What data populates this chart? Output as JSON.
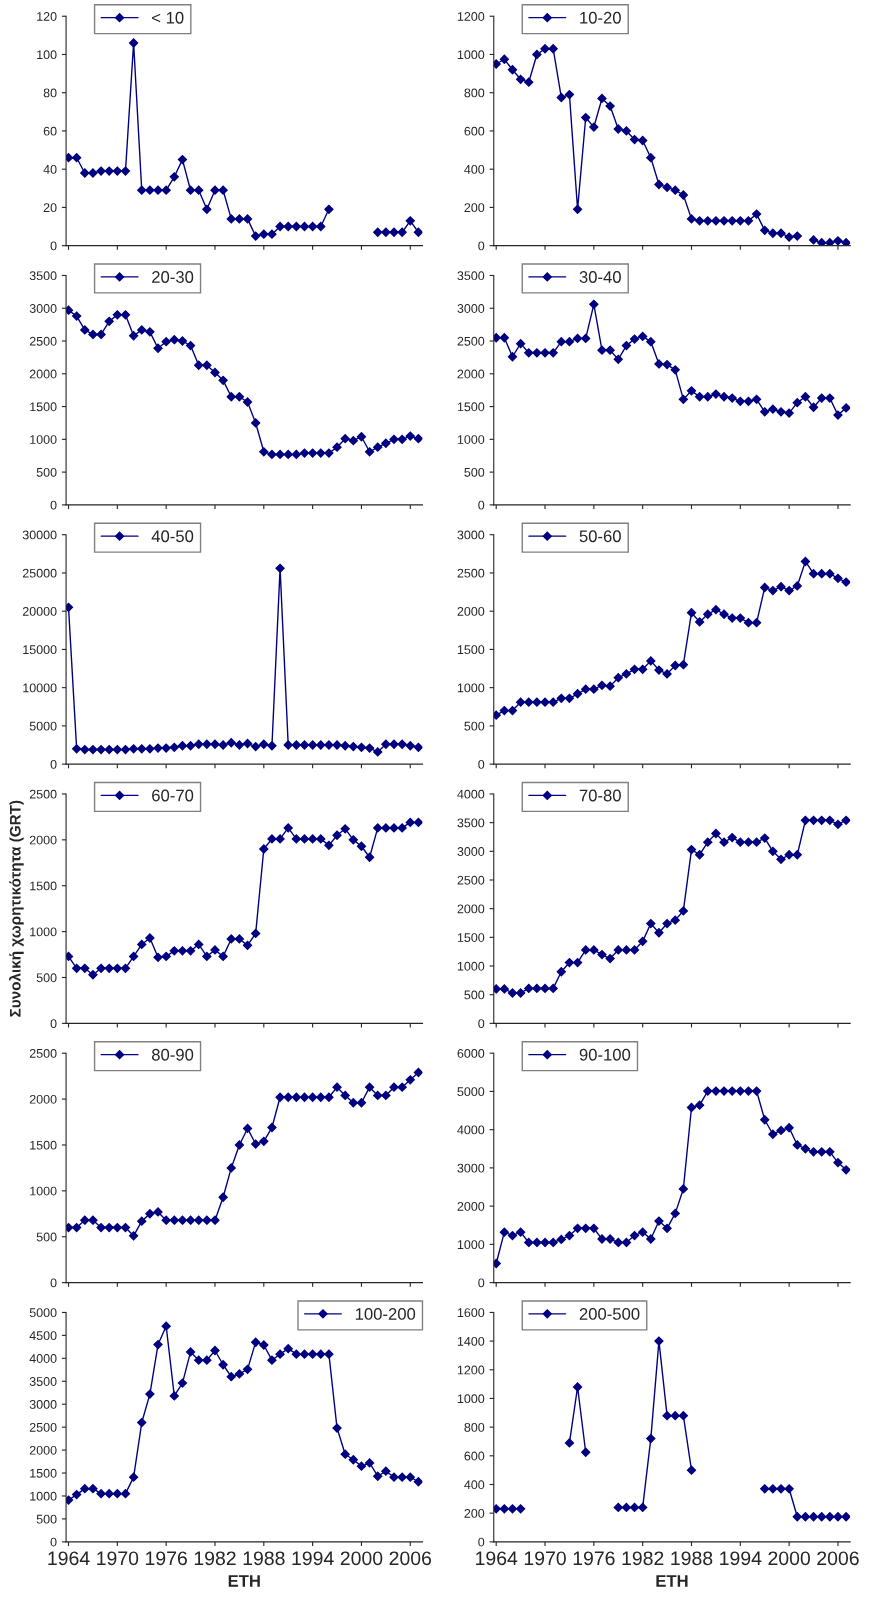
{
  "chart_data": [
    {
      "type": "line",
      "x": [
        1964,
        1965,
        1966,
        1967,
        1968,
        1969,
        1970,
        1971,
        1972,
        1973,
        1974,
        1975,
        1976,
        1977,
        1978,
        1979,
        1980,
        1981,
        1982,
        1983,
        1984,
        1985,
        1986,
        1987,
        1988,
        1989,
        1990,
        1991,
        1992,
        1993,
        1994,
        1995,
        1996,
        1997,
        1998,
        1999,
        2000,
        2001,
        2002,
        2003,
        2004,
        2005,
        2006,
        2007
      ],
      "xlim": [
        1963.7,
        2007.5
      ],
      "xticks": [
        1964,
        1970,
        1976,
        1982,
        1988,
        1994,
        2000,
        2006
      ],
      "ylim": [
        0,
        120
      ],
      "yticks": [
        0,
        20,
        40,
        60,
        80,
        100,
        120
      ],
      "tick_labels": "y",
      "legend": "top left",
      "marker": "diamond",
      "line_style": "solid",
      "grid": false,
      "series": [
        {
          "name": "< 10",
          "color": "#000080",
          "values": [
            46,
            46,
            38,
            38,
            39,
            39,
            39,
            39,
            106,
            29,
            29,
            29,
            29,
            36,
            45,
            29,
            29,
            19,
            29,
            29,
            14,
            14,
            14,
            5,
            6,
            6,
            10,
            10,
            10,
            10,
            10,
            10,
            19,
            null,
            null,
            null,
            null,
            null,
            7,
            7,
            7,
            7,
            13,
            7
          ]
        }
      ]
    },
    {
      "type": "line",
      "x": [
        1964,
        1965,
        1966,
        1967,
        1968,
        1969,
        1970,
        1971,
        1972,
        1973,
        1974,
        1975,
        1976,
        1977,
        1978,
        1979,
        1980,
        1981,
        1982,
        1983,
        1984,
        1985,
        1986,
        1987,
        1988,
        1989,
        1990,
        1991,
        1992,
        1993,
        1994,
        1995,
        1996,
        1997,
        1998,
        1999,
        2000,
        2001,
        2002,
        2003,
        2004,
        2005,
        2006,
        2007
      ],
      "xlim": [
        1963.7,
        2007.5
      ],
      "xticks": [
        1964,
        1970,
        1976,
        1982,
        1988,
        1994,
        2000,
        2006
      ],
      "ylim": [
        0,
        1200
      ],
      "yticks": [
        0,
        200,
        400,
        600,
        800,
        1000,
        1200
      ],
      "tick_labels": "y",
      "legend": "top left",
      "marker": "diamond",
      "line_style": "solid",
      "grid": false,
      "series": [
        {
          "name": "10-20",
          "color": "#000080",
          "values": [
            950,
            975,
            920,
            870,
            855,
            1000,
            1030,
            1030,
            775,
            790,
            190,
            670,
            620,
            770,
            730,
            610,
            600,
            555,
            550,
            460,
            320,
            305,
            290,
            265,
            140,
            130,
            130,
            130,
            130,
            130,
            130,
            130,
            165,
            80,
            65,
            65,
            45,
            50,
            null,
            30,
            15,
            15,
            25,
            15
          ]
        }
      ]
    },
    {
      "type": "line",
      "x": [
        1964,
        1965,
        1966,
        1967,
        1968,
        1969,
        1970,
        1971,
        1972,
        1973,
        1974,
        1975,
        1976,
        1977,
        1978,
        1979,
        1980,
        1981,
        1982,
        1983,
        1984,
        1985,
        1986,
        1987,
        1988,
        1989,
        1990,
        1991,
        1992,
        1993,
        1994,
        1995,
        1996,
        1997,
        1998,
        1999,
        2000,
        2001,
        2002,
        2003,
        2004,
        2005,
        2006,
        2007
      ],
      "xlim": [
        1963.7,
        2007.5
      ],
      "xticks": [
        1964,
        1970,
        1976,
        1982,
        1988,
        1994,
        2000,
        2006
      ],
      "ylim": [
        0,
        3500
      ],
      "yticks": [
        0,
        500,
        1000,
        1500,
        2000,
        2500,
        3000,
        3500
      ],
      "tick_labels": "y",
      "legend": "top left",
      "marker": "diamond",
      "line_style": "solid",
      "grid": false,
      "series": [
        {
          "name": "20-30",
          "color": "#000080",
          "values": [
            2970,
            2880,
            2670,
            2600,
            2600,
            2800,
            2900,
            2900,
            2580,
            2670,
            2640,
            2390,
            2490,
            2520,
            2500,
            2430,
            2130,
            2130,
            2020,
            1900,
            1650,
            1650,
            1570,
            1250,
            810,
            770,
            770,
            770,
            770,
            790,
            790,
            790,
            790,
            880,
            1010,
            980,
            1040,
            810,
            880,
            940,
            1000,
            1000,
            1050,
            1010
          ]
        }
      ]
    },
    {
      "type": "line",
      "x": [
        1964,
        1965,
        1966,
        1967,
        1968,
        1969,
        1970,
        1971,
        1972,
        1973,
        1974,
        1975,
        1976,
        1977,
        1978,
        1979,
        1980,
        1981,
        1982,
        1983,
        1984,
        1985,
        1986,
        1987,
        1988,
        1989,
        1990,
        1991,
        1992,
        1993,
        1994,
        1995,
        1996,
        1997,
        1998,
        1999,
        2000,
        2001,
        2002,
        2003,
        2004,
        2005,
        2006,
        2007
      ],
      "xlim": [
        1963.7,
        2007.5
      ],
      "xticks": [
        1964,
        1970,
        1976,
        1982,
        1988,
        1994,
        2000,
        2006
      ],
      "ylim": [
        0,
        3500
      ],
      "yticks": [
        0,
        500,
        1000,
        1500,
        2000,
        2500,
        3000,
        3500
      ],
      "tick_labels": "y",
      "legend": "top left",
      "marker": "diamond",
      "line_style": "solid",
      "grid": false,
      "series": [
        {
          "name": "30-40",
          "color": "#000080",
          "values": [
            2550,
            2550,
            2260,
            2460,
            2320,
            2320,
            2320,
            2320,
            2490,
            2490,
            2540,
            2540,
            3060,
            2360,
            2360,
            2220,
            2430,
            2530,
            2570,
            2490,
            2150,
            2140,
            2060,
            1610,
            1740,
            1650,
            1650,
            1690,
            1650,
            1630,
            1580,
            1580,
            1610,
            1420,
            1460,
            1420,
            1400,
            1560,
            1650,
            1490,
            1630,
            1630,
            1370,
            1480
          ]
        }
      ]
    },
    {
      "type": "line",
      "x": [
        1964,
        1965,
        1966,
        1967,
        1968,
        1969,
        1970,
        1971,
        1972,
        1973,
        1974,
        1975,
        1976,
        1977,
        1978,
        1979,
        1980,
        1981,
        1982,
        1983,
        1984,
        1985,
        1986,
        1987,
        1988,
        1989,
        1990,
        1991,
        1992,
        1993,
        1994,
        1995,
        1996,
        1997,
        1998,
        1999,
        2000,
        2001,
        2002,
        2003,
        2004,
        2005,
        2006,
        2007
      ],
      "xlim": [
        1963.7,
        2007.5
      ],
      "xticks": [
        1964,
        1970,
        1976,
        1982,
        1988,
        1994,
        2000,
        2006
      ],
      "ylim": [
        0,
        30000
      ],
      "yticks": [
        0,
        5000,
        10000,
        15000,
        20000,
        25000,
        30000
      ],
      "tick_labels": "y",
      "legend": "top left",
      "marker": "diamond",
      "line_style": "solid",
      "grid": false,
      "series": [
        {
          "name": "40-50",
          "color": "#000080",
          "values": [
            20500,
            2000,
            1900,
            1900,
            1900,
            1900,
            1900,
            1900,
            2000,
            2000,
            2000,
            2100,
            2100,
            2200,
            2400,
            2400,
            2600,
            2600,
            2600,
            2500,
            2800,
            2500,
            2700,
            2300,
            2600,
            2400,
            25600,
            2500,
            2500,
            2500,
            2500,
            2500,
            2500,
            2500,
            2400,
            2300,
            2200,
            2100,
            1600,
            2600,
            2600,
            2600,
            2400,
            2200
          ]
        }
      ]
    },
    {
      "type": "line",
      "x": [
        1964,
        1965,
        1966,
        1967,
        1968,
        1969,
        1970,
        1971,
        1972,
        1973,
        1974,
        1975,
        1976,
        1977,
        1978,
        1979,
        1980,
        1981,
        1982,
        1983,
        1984,
        1985,
        1986,
        1987,
        1988,
        1989,
        1990,
        1991,
        1992,
        1993,
        1994,
        1995,
        1996,
        1997,
        1998,
        1999,
        2000,
        2001,
        2002,
        2003,
        2004,
        2005,
        2006,
        2007
      ],
      "xlim": [
        1963.7,
        2007.5
      ],
      "xticks": [
        1964,
        1970,
        1976,
        1982,
        1988,
        1994,
        2000,
        2006
      ],
      "ylim": [
        0,
        3000
      ],
      "yticks": [
        0,
        500,
        1000,
        1500,
        2000,
        2500,
        3000
      ],
      "tick_labels": "y",
      "legend": "top left",
      "marker": "diamond",
      "line_style": "solid",
      "grid": false,
      "series": [
        {
          "name": "50-60",
          "color": "#000080",
          "values": [
            640,
            700,
            700,
            810,
            810,
            810,
            810,
            810,
            860,
            860,
            920,
            980,
            980,
            1030,
            1020,
            1130,
            1180,
            1240,
            1240,
            1350,
            1230,
            1180,
            1290,
            1300,
            1980,
            1860,
            1960,
            2020,
            1960,
            1910,
            1910,
            1850,
            1850,
            2310,
            2270,
            2320,
            2270,
            2330,
            2650,
            2490,
            2490,
            2490,
            2430,
            2380
          ]
        }
      ]
    },
    {
      "type": "line",
      "x": [
        1964,
        1965,
        1966,
        1967,
        1968,
        1969,
        1970,
        1971,
        1972,
        1973,
        1974,
        1975,
        1976,
        1977,
        1978,
        1979,
        1980,
        1981,
        1982,
        1983,
        1984,
        1985,
        1986,
        1987,
        1988,
        1989,
        1990,
        1991,
        1992,
        1993,
        1994,
        1995,
        1996,
        1997,
        1998,
        1999,
        2000,
        2001,
        2002,
        2003,
        2004,
        2005,
        2006,
        2007
      ],
      "xlim": [
        1963.7,
        2007.5
      ],
      "xticks": [
        1964,
        1970,
        1976,
        1982,
        1988,
        1994,
        2000,
        2006
      ],
      "ylim": [
        0,
        2500
      ],
      "yticks": [
        0,
        500,
        1000,
        1500,
        2000,
        2500
      ],
      "tick_labels": "y",
      "legend": "top left",
      "marker": "diamond",
      "line_style": "solid",
      "grid": false,
      "ylabel": "Συνολική χωρητικότητα (GRT)",
      "series": [
        {
          "name": "60-70",
          "color": "#000080",
          "values": [
            730,
            600,
            600,
            530,
            600,
            600,
            600,
            600,
            730,
            860,
            930,
            720,
            730,
            790,
            790,
            790,
            860,
            730,
            800,
            730,
            920,
            920,
            850,
            980,
            1900,
            2010,
            2010,
            2130,
            2010,
            2010,
            2010,
            2010,
            1940,
            2050,
            2120,
            2000,
            1930,
            1810,
            2130,
            2130,
            2130,
            2130,
            2190,
            2190
          ]
        }
      ]
    },
    {
      "type": "line",
      "x": [
        1964,
        1965,
        1966,
        1967,
        1968,
        1969,
        1970,
        1971,
        1972,
        1973,
        1974,
        1975,
        1976,
        1977,
        1978,
        1979,
        1980,
        1981,
        1982,
        1983,
        1984,
        1985,
        1986,
        1987,
        1988,
        1989,
        1990,
        1991,
        1992,
        1993,
        1994,
        1995,
        1996,
        1997,
        1998,
        1999,
        2000,
        2001,
        2002,
        2003,
        2004,
        2005,
        2006,
        2007
      ],
      "xlim": [
        1963.7,
        2007.5
      ],
      "xticks": [
        1964,
        1970,
        1976,
        1982,
        1988,
        1994,
        2000,
        2006
      ],
      "ylim": [
        0,
        4000
      ],
      "yticks": [
        0,
        500,
        1000,
        1500,
        2000,
        2500,
        3000,
        3500,
        4000
      ],
      "tick_labels": "y",
      "legend": "top left",
      "marker": "diamond",
      "line_style": "solid",
      "grid": false,
      "series": [
        {
          "name": "70-80",
          "color": "#000080",
          "values": [
            600,
            600,
            530,
            530,
            610,
            610,
            610,
            610,
            900,
            1060,
            1060,
            1280,
            1280,
            1200,
            1130,
            1280,
            1280,
            1280,
            1430,
            1740,
            1580,
            1740,
            1800,
            1960,
            3030,
            2940,
            3160,
            3310,
            3160,
            3240,
            3160,
            3160,
            3160,
            3230,
            3000,
            2860,
            2940,
            2940,
            3540,
            3540,
            3540,
            3540,
            3470,
            3540
          ]
        }
      ]
    },
    {
      "type": "line",
      "x": [
        1964,
        1965,
        1966,
        1967,
        1968,
        1969,
        1970,
        1971,
        1972,
        1973,
        1974,
        1975,
        1976,
        1977,
        1978,
        1979,
        1980,
        1981,
        1982,
        1983,
        1984,
        1985,
        1986,
        1987,
        1988,
        1989,
        1990,
        1991,
        1992,
        1993,
        1994,
        1995,
        1996,
        1997,
        1998,
        1999,
        2000,
        2001,
        2002,
        2003,
        2004,
        2005,
        2006,
        2007
      ],
      "xlim": [
        1963.7,
        2007.5
      ],
      "xticks": [
        1964,
        1970,
        1976,
        1982,
        1988,
        1994,
        2000,
        2006
      ],
      "ylim": [
        0,
        2500
      ],
      "yticks": [
        0,
        500,
        1000,
        1500,
        2000,
        2500
      ],
      "tick_labels": "y",
      "legend": "top left",
      "marker": "diamond",
      "line_style": "solid",
      "grid": false,
      "series": [
        {
          "name": "80-90",
          "color": "#000080",
          "values": [
            600,
            600,
            680,
            680,
            600,
            600,
            600,
            600,
            510,
            670,
            750,
            770,
            680,
            680,
            680,
            680,
            680,
            680,
            680,
            930,
            1250,
            1500,
            1680,
            1510,
            1540,
            1690,
            2020,
            2020,
            2020,
            2020,
            2020,
            2020,
            2020,
            2130,
            2040,
            1960,
            1960,
            2130,
            2040,
            2040,
            2130,
            2130,
            2210,
            2290
          ]
        }
      ]
    },
    {
      "type": "line",
      "x": [
        1964,
        1965,
        1966,
        1967,
        1968,
        1969,
        1970,
        1971,
        1972,
        1973,
        1974,
        1975,
        1976,
        1977,
        1978,
        1979,
        1980,
        1981,
        1982,
        1983,
        1984,
        1985,
        1986,
        1987,
        1988,
        1989,
        1990,
        1991,
        1992,
        1993,
        1994,
        1995,
        1996,
        1997,
        1998,
        1999,
        2000,
        2001,
        2002,
        2003,
        2004,
        2005,
        2006,
        2007
      ],
      "xlim": [
        1963.7,
        2007.5
      ],
      "xticks": [
        1964,
        1970,
        1976,
        1982,
        1988,
        1994,
        2000,
        2006
      ],
      "ylim": [
        0,
        6000
      ],
      "yticks": [
        0,
        1000,
        2000,
        3000,
        4000,
        5000,
        6000
      ],
      "tick_labels": "y",
      "legend": "top left",
      "marker": "diamond",
      "line_style": "solid",
      "grid": false,
      "series": [
        {
          "name": "90-100",
          "color": "#000080",
          "values": [
            500,
            1320,
            1230,
            1320,
            1050,
            1050,
            1050,
            1050,
            1130,
            1230,
            1420,
            1420,
            1420,
            1140,
            1140,
            1050,
            1050,
            1230,
            1320,
            1140,
            1610,
            1420,
            1810,
            2450,
            4580,
            4640,
            5010,
            5010,
            5010,
            5010,
            5010,
            5010,
            5010,
            4260,
            3880,
            3980,
            4050,
            3600,
            3500,
            3420,
            3420,
            3420,
            3140,
            2950
          ]
        }
      ]
    },
    {
      "type": "line",
      "x": [
        1964,
        1965,
        1966,
        1967,
        1968,
        1969,
        1970,
        1971,
        1972,
        1973,
        1974,
        1975,
        1976,
        1977,
        1978,
        1979,
        1980,
        1981,
        1982,
        1983,
        1984,
        1985,
        1986,
        1987,
        1988,
        1989,
        1990,
        1991,
        1992,
        1993,
        1994,
        1995,
        1996,
        1997,
        1998,
        1999,
        2000,
        2001,
        2002,
        2003,
        2004,
        2005,
        2006,
        2007
      ],
      "xlim": [
        1963.7,
        2007.5
      ],
      "xticks": [
        1964,
        1970,
        1976,
        1982,
        1988,
        1994,
        2000,
        2006
      ],
      "ylim": [
        0,
        5000
      ],
      "yticks": [
        0,
        500,
        1000,
        1500,
        2000,
        2500,
        3000,
        3500,
        4000,
        4500,
        5000
      ],
      "legend": "top right",
      "marker": "diamond",
      "line_style": "solid",
      "grid": false,
      "xlabel": "ETH",
      "series": [
        {
          "name": "100-200",
          "color": "#000080",
          "values": [
            910,
            1030,
            1160,
            1160,
            1050,
            1050,
            1050,
            1050,
            1410,
            2600,
            3220,
            4300,
            4700,
            3180,
            3460,
            4140,
            3960,
            3960,
            4170,
            3860,
            3600,
            3660,
            3760,
            4350,
            4290,
            3960,
            4090,
            4210,
            4090,
            4090,
            4090,
            4090,
            4090,
            2480,
            1910,
            1790,
            1650,
            1720,
            1430,
            1540,
            1410,
            1410,
            1410,
            1310
          ]
        }
      ]
    },
    {
      "type": "line",
      "x": [
        1964,
        1965,
        1966,
        1967,
        1968,
        1969,
        1970,
        1971,
        1972,
        1973,
        1974,
        1975,
        1976,
        1977,
        1978,
        1979,
        1980,
        1981,
        1982,
        1983,
        1984,
        1985,
        1986,
        1987,
        1988,
        1989,
        1990,
        1991,
        1992,
        1993,
        1994,
        1995,
        1996,
        1997,
        1998,
        1999,
        2000,
        2001,
        2002,
        2003,
        2004,
        2005,
        2006,
        2007
      ],
      "xlim": [
        1963.7,
        2007.5
      ],
      "xticks": [
        1964,
        1970,
        1976,
        1982,
        1988,
        1994,
        2000,
        2006
      ],
      "ylim": [
        0,
        1600
      ],
      "yticks": [
        0,
        200,
        400,
        600,
        800,
        1000,
        1200,
        1400,
        1600
      ],
      "legend": "top left",
      "marker": "diamond",
      "line_style": "solid",
      "grid": false,
      "xlabel": "ETH",
      "series": [
        {
          "name": "200-500",
          "color": "#000080",
          "values": [
            230,
            230,
            230,
            230,
            null,
            null,
            null,
            null,
            null,
            690,
            1080,
            625,
            null,
            null,
            null,
            240,
            240,
            240,
            240,
            720,
            1400,
            880,
            880,
            880,
            500,
            null,
            null,
            null,
            null,
            null,
            null,
            null,
            null,
            370,
            370,
            370,
            370,
            175,
            175,
            175,
            175,
            175,
            175,
            175
          ]
        }
      ]
    }
  ]
}
